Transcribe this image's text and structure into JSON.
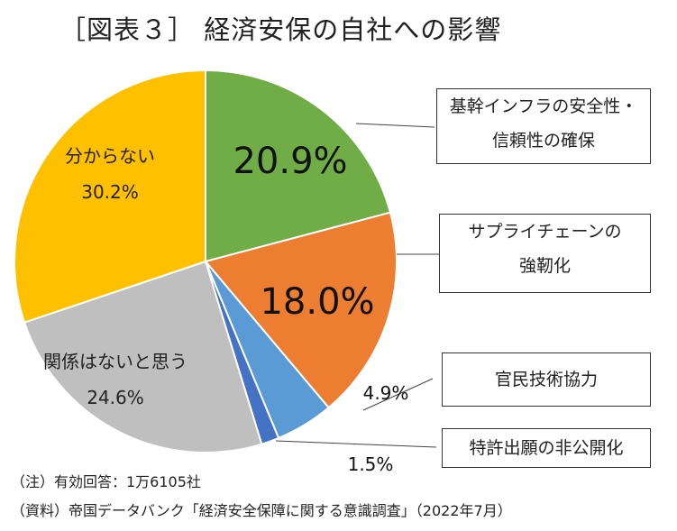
{
  "title": "［図表３］ 経済安保の自社への影響",
  "chart_data": {
    "type": "pie",
    "title": "［図表３］ 経済安保の自社への影響",
    "start_angle_deg": 0,
    "direction": "clockwise",
    "slices": [
      {
        "label_lines": [
          "基幹インフラの安全性・",
          "信頼性の確保"
        ],
        "value": 20.9,
        "value_label": "20.9%",
        "color": "#70ad47"
      },
      {
        "label_lines": [
          "サプライチェーンの",
          "強靭化"
        ],
        "value": 18.0,
        "value_label": "18.0%",
        "color": "#ed7d31"
      },
      {
        "label_lines": [
          "官民技術協力"
        ],
        "value": 4.9,
        "value_label": "4.9%",
        "color": "#5b9bd5"
      },
      {
        "label_lines": [
          "特許出願の非公開化"
        ],
        "value": 1.5,
        "value_label": "1.5%",
        "color": "#4472c4"
      },
      {
        "label_lines": [
          "関係はないと思う"
        ],
        "value": 24.6,
        "value_label": "24.6%",
        "color": "#bfbfbf"
      },
      {
        "label_lines": [
          "分からない"
        ],
        "value": 30.2,
        "value_label": "30.2%",
        "color": "#ffc000"
      }
    ]
  },
  "notes": {
    "note1": "（注）有効回答：1万6105社",
    "note2": "（資料）帝国データバンク「経済安全保障に関する意識調査」（2022年7月）"
  }
}
